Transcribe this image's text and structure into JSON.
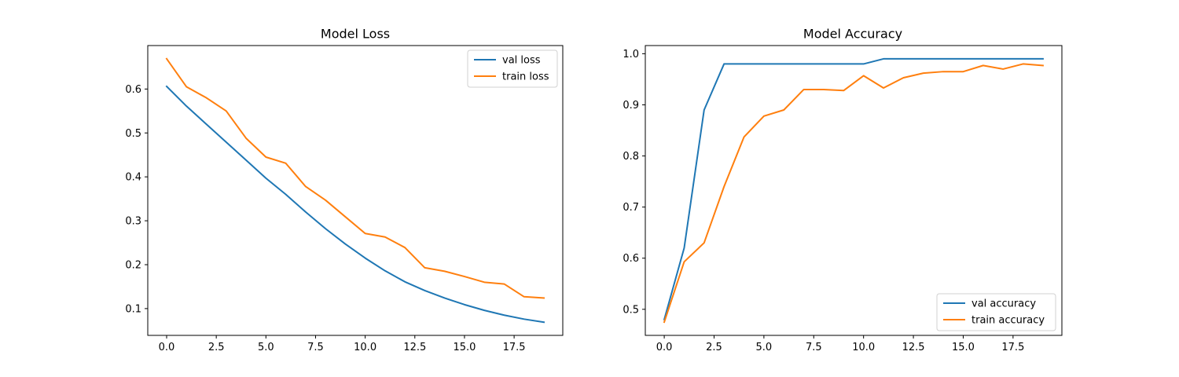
{
  "colors": {
    "series_a": "#1f77b4",
    "series_b": "#ff7f0e"
  },
  "chart_data": [
    {
      "type": "line",
      "title": "Model Loss",
      "xlabel": "",
      "ylabel": "",
      "xlim": [
        -0.95,
        19.95
      ],
      "ylim": [
        0.039,
        0.699
      ],
      "xticks": [
        0,
        2.5,
        5,
        7.5,
        10,
        12.5,
        15,
        17.5
      ],
      "xtick_labels": [
        "0.0",
        "2.5",
        "5.0",
        "7.5",
        "10.0",
        "12.5",
        "15.0",
        "17.5"
      ],
      "yticks": [
        0.1,
        0.2,
        0.3,
        0.4,
        0.5,
        0.6
      ],
      "ytick_labels": [
        "0.1",
        "0.2",
        "0.3",
        "0.4",
        "0.5",
        "0.6"
      ],
      "legend_position": "upper-right",
      "grid": false,
      "x": [
        0,
        1,
        2,
        3,
        4,
        5,
        6,
        7,
        8,
        9,
        10,
        11,
        12,
        13,
        14,
        15,
        16,
        17,
        18,
        19
      ],
      "series": [
        {
          "name": "val loss",
          "color": "#1f77b4",
          "values": [
            0.606,
            0.561,
            0.52,
            0.479,
            0.438,
            0.397,
            0.36,
            0.32,
            0.282,
            0.247,
            0.215,
            0.186,
            0.161,
            0.141,
            0.124,
            0.109,
            0.096,
            0.085,
            0.076,
            0.069
          ]
        },
        {
          "name": "train loss",
          "color": "#ff7f0e",
          "values": [
            0.669,
            0.605,
            0.58,
            0.55,
            0.488,
            0.445,
            0.431,
            0.378,
            0.347,
            0.309,
            0.271,
            0.263,
            0.239,
            0.193,
            0.185,
            0.173,
            0.16,
            0.156,
            0.127,
            0.124
          ]
        }
      ]
    },
    {
      "type": "line",
      "title": "Model Accuracy",
      "xlabel": "",
      "ylabel": "",
      "xlim": [
        -0.95,
        19.95
      ],
      "ylim": [
        0.449,
        1.016
      ],
      "xticks": [
        0,
        2.5,
        5,
        7.5,
        10,
        12.5,
        15,
        17.5
      ],
      "xtick_labels": [
        "0.0",
        "2.5",
        "5.0",
        "7.5",
        "10.0",
        "12.5",
        "15.0",
        "17.5"
      ],
      "yticks": [
        0.5,
        0.6,
        0.7,
        0.8,
        0.9,
        1.0
      ],
      "ytick_labels": [
        "0.5",
        "0.6",
        "0.7",
        "0.8",
        "0.9",
        "1.0"
      ],
      "legend_position": "lower-right",
      "grid": false,
      "x": [
        0,
        1,
        2,
        3,
        4,
        5,
        6,
        7,
        8,
        9,
        10,
        11,
        12,
        13,
        14,
        15,
        16,
        17,
        18,
        19
      ],
      "series": [
        {
          "name": "val accuracy",
          "color": "#1f77b4",
          "values": [
            0.48,
            0.62,
            0.89,
            0.98,
            0.98,
            0.98,
            0.98,
            0.98,
            0.98,
            0.98,
            0.98,
            0.99,
            0.99,
            0.99,
            0.99,
            0.99,
            0.99,
            0.99,
            0.99,
            0.99
          ]
        },
        {
          "name": "train accuracy",
          "color": "#ff7f0e",
          "values": [
            0.475,
            0.593,
            0.63,
            0.74,
            0.837,
            0.878,
            0.89,
            0.93,
            0.93,
            0.928,
            0.957,
            0.933,
            0.953,
            0.962,
            0.965,
            0.965,
            0.977,
            0.97,
            0.98,
            0.977
          ]
        }
      ]
    }
  ]
}
